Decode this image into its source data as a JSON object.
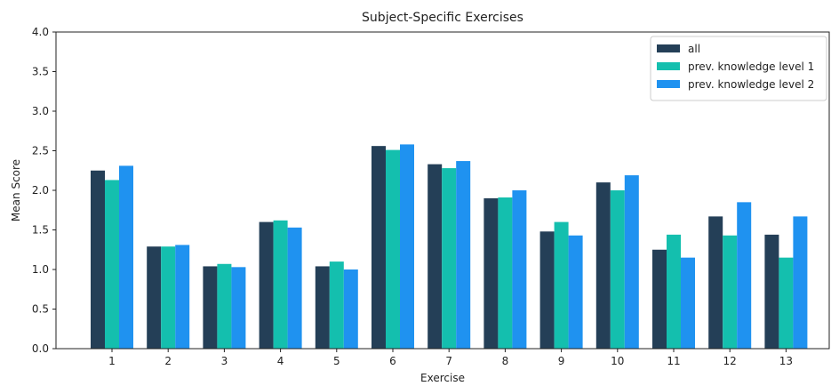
{
  "chart_data": {
    "type": "bar",
    "title": "Subject-Specific Exercises",
    "xlabel": "Exercise",
    "ylabel": "Mean Score",
    "ylim": [
      0,
      4.0
    ],
    "yticks": [
      "0.0",
      "0.5",
      "1.0",
      "1.5",
      "2.0",
      "2.5",
      "3.0",
      "3.5",
      "4.0"
    ],
    "categories": [
      "1",
      "2",
      "3",
      "4",
      "5",
      "6",
      "7",
      "8",
      "9",
      "10",
      "11",
      "12",
      "13"
    ],
    "grid": false,
    "legend_position": "top-right",
    "series": [
      {
        "name": "all",
        "color": "#243f57",
        "values": [
          2.25,
          1.29,
          1.04,
          1.6,
          1.04,
          2.56,
          2.33,
          1.9,
          1.48,
          2.1,
          1.25,
          1.67,
          1.44
        ]
      },
      {
        "name": "prev. knowledge level 1",
        "color": "#14bfae",
        "values": [
          2.13,
          1.29,
          1.07,
          1.62,
          1.1,
          2.51,
          2.28,
          1.91,
          1.6,
          2.0,
          1.44,
          1.43,
          1.15
        ]
      },
      {
        "name": "prev. knowledge level 2",
        "color": "#1f92f0",
        "values": [
          2.31,
          1.31,
          1.03,
          1.53,
          1.0,
          2.58,
          2.37,
          2.0,
          1.43,
          2.19,
          1.15,
          1.85,
          1.67
        ]
      }
    ]
  }
}
